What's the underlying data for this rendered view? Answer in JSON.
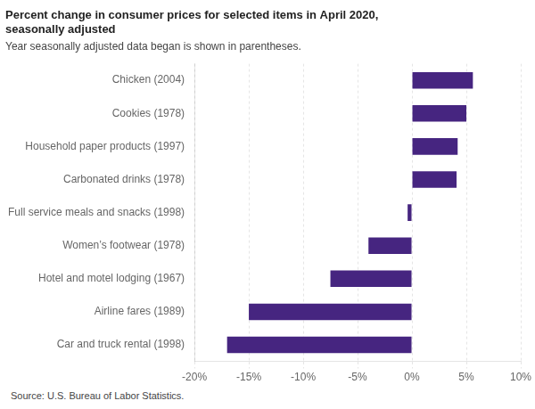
{
  "chart_data": {
    "type": "bar",
    "orientation": "horizontal",
    "title": [
      "Percent change in consumer prices for selected items in April 2020,",
      "seasonally adjusted"
    ],
    "subtitle": "Year seasonally adjusted data began is shown in parentheses.",
    "source": "Source: U.S. Bureau of Labor Statistics.",
    "categories": [
      "Chicken (2004)",
      "Cookies (1978)",
      "Household paper products (1997)",
      "Carbonated drinks (1978)",
      "Full service meals and snacks (1998)",
      "Women’s footwear (1978)",
      "Hotel and motel lodging (1967)",
      "Airline fares (1989)",
      "Car and truck rental (1998)"
    ],
    "values": [
      5.6,
      5.0,
      4.2,
      4.1,
      -0.4,
      -4.0,
      -7.5,
      -15.0,
      -17.0
    ],
    "color": "#462580",
    "xlim": [
      -20,
      10
    ],
    "xticks": [
      {
        "value": -20,
        "label": "-20%"
      },
      {
        "value": -15,
        "label": "-15%"
      },
      {
        "value": -10,
        "label": "-10%"
      },
      {
        "value": -5,
        "label": "-5%"
      },
      {
        "value": 0,
        "label": "0%"
      },
      {
        "value": 5,
        "label": "5%"
      },
      {
        "value": 10,
        "label": "10%"
      }
    ],
    "grid": true
  }
}
